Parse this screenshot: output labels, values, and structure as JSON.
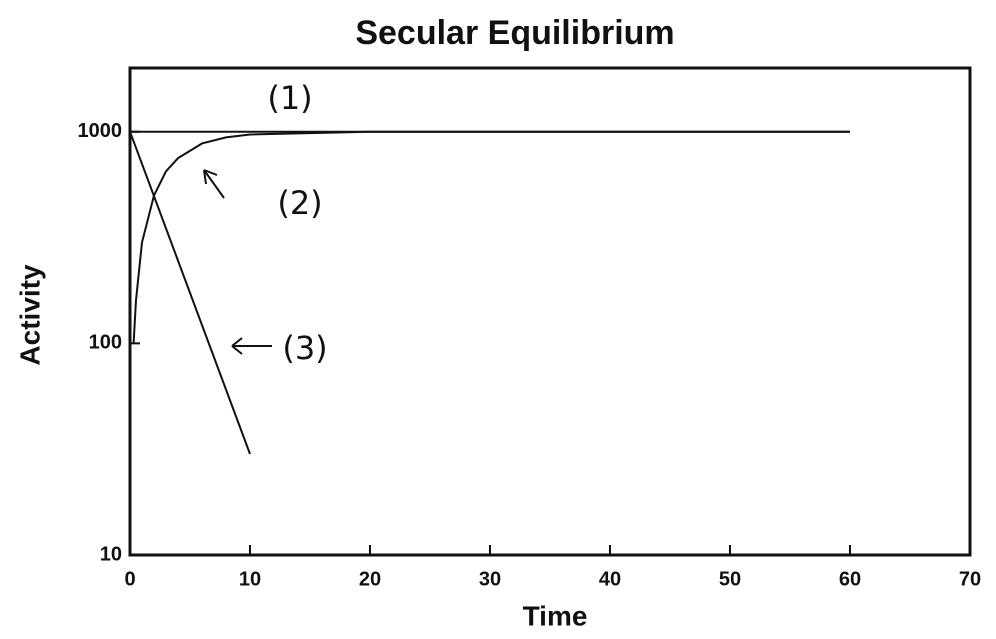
{
  "chart_data": {
    "type": "line",
    "title": "Secular Equilibrium",
    "x_label": "Time",
    "y_label": "Activity",
    "log_y": true,
    "xlim": [
      0,
      70
    ],
    "xticks": [
      0,
      10,
      20,
      30,
      40,
      50,
      60,
      70
    ],
    "ylim": [
      10,
      2000
    ],
    "yticks": [
      10,
      100,
      1000
    ],
    "series": [
      {
        "color": "#111111",
        "x": [
          0,
          60
        ],
        "values": [
          1000,
          1000
        ]
      },
      {
        "color": "#111111",
        "x": [
          0.3,
          0.5,
          1,
          2,
          3,
          4,
          6,
          8,
          10,
          20,
          60
        ],
        "values": [
          100,
          160,
          300,
          500,
          650,
          750,
          880,
          940,
          970,
          1000,
          1000
        ]
      },
      {
        "color": "#111111",
        "x": [
          0,
          10
        ],
        "values": [
          1000,
          30
        ]
      }
    ],
    "annotations": [
      "(1)",
      "(2)",
      "(3)"
    ]
  }
}
